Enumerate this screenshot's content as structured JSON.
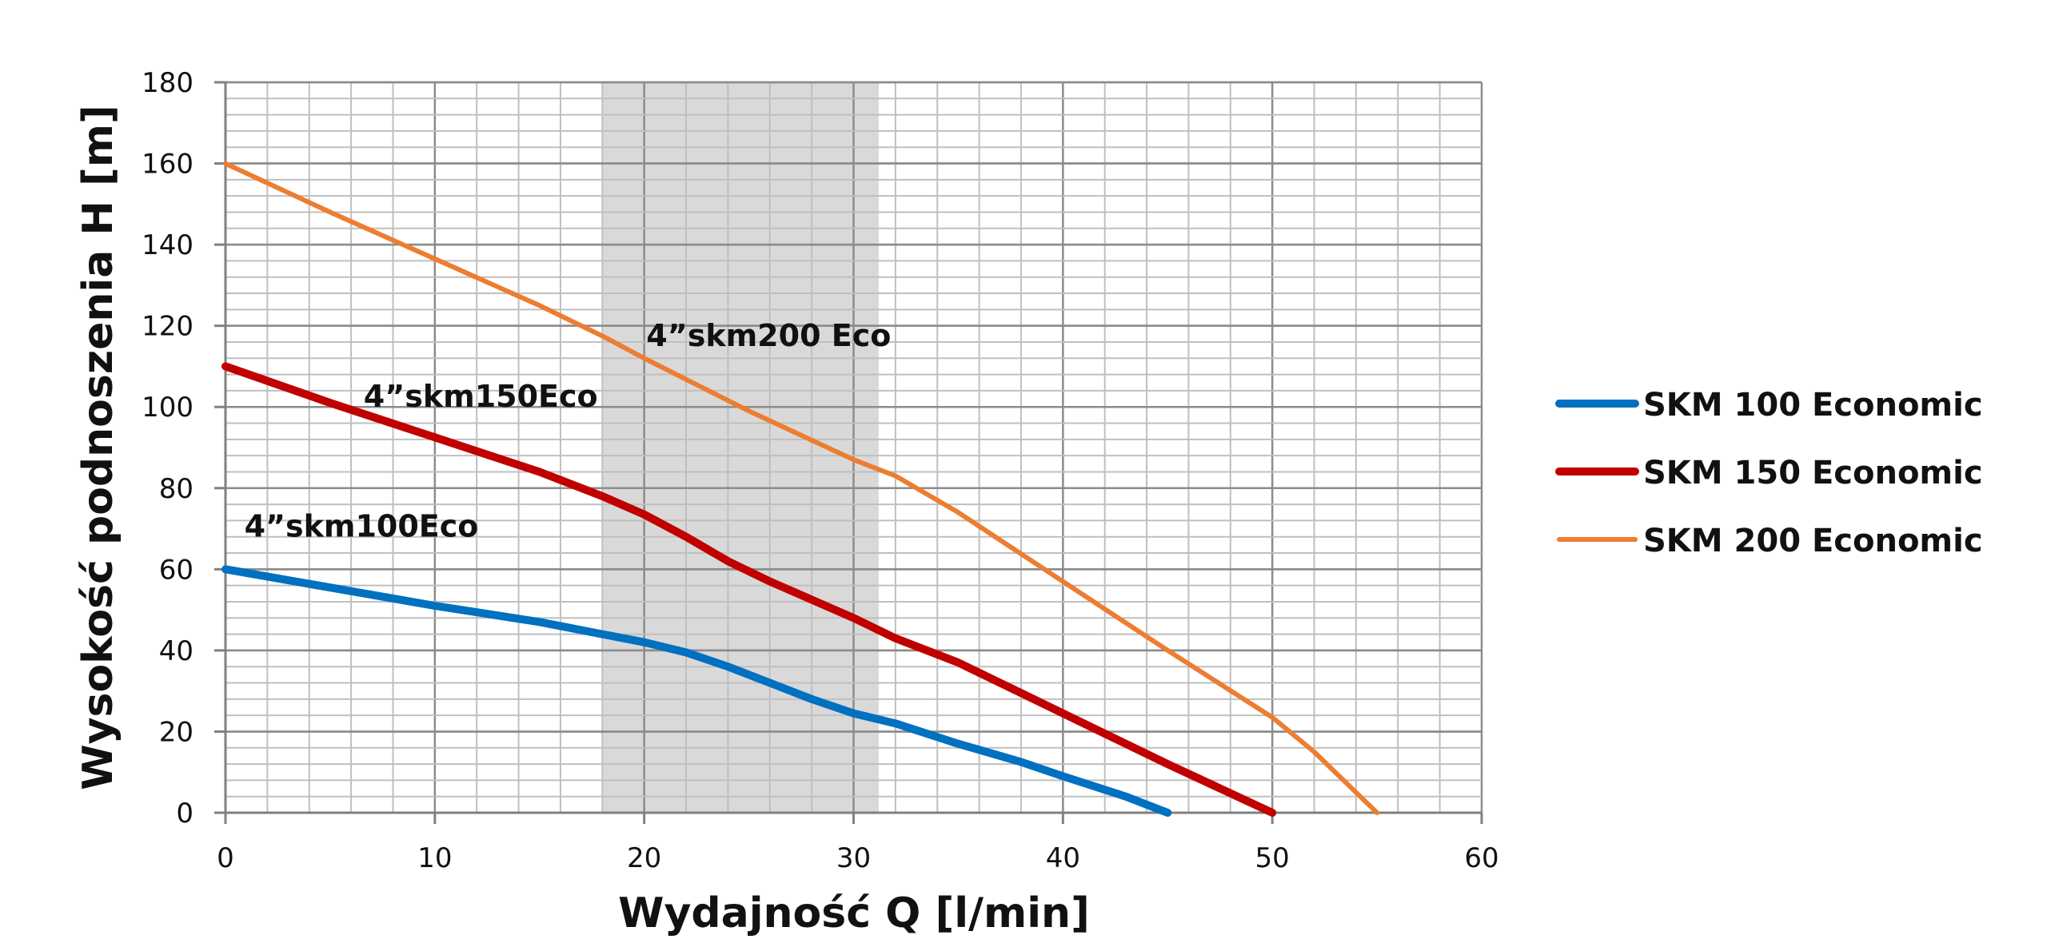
{
  "chart_data": {
    "type": "line",
    "title": "",
    "xlabel": "Wydajność Q [l/min]",
    "ylabel": "Wysokość podnoszenia H [m]",
    "xlim": [
      0,
      60
    ],
    "ylim": [
      0,
      180
    ],
    "x_ticks": [
      0,
      10,
      20,
      30,
      40,
      50,
      60
    ],
    "y_ticks": [
      0,
      20,
      40,
      60,
      80,
      100,
      120,
      140,
      160,
      180
    ],
    "x_minor_step": 2,
    "y_minor_step": 4,
    "grid": true,
    "shaded_range_x": [
      18,
      31.2
    ],
    "shaded_color": "#d9d9d9",
    "legend_position": "right",
    "series": [
      {
        "name": "SKM 100 Economic",
        "color": "#0070c0",
        "width": "thick",
        "points": [
          [
            0,
            60
          ],
          [
            5,
            55.5
          ],
          [
            10,
            51
          ],
          [
            15,
            47
          ],
          [
            18,
            44
          ],
          [
            20,
            42
          ],
          [
            22,
            39.5
          ],
          [
            24,
            36
          ],
          [
            26,
            32
          ],
          [
            28,
            28
          ],
          [
            30,
            24.5
          ],
          [
            32,
            22
          ],
          [
            35,
            17
          ],
          [
            38,
            12.5
          ],
          [
            40,
            9
          ],
          [
            43,
            4
          ],
          [
            45,
            0
          ]
        ]
      },
      {
        "name": "SKM 150 Economic",
        "color": "#c00000",
        "width": "thick",
        "points": [
          [
            0,
            110
          ],
          [
            5,
            101
          ],
          [
            10,
            92.5
          ],
          [
            15,
            84
          ],
          [
            18,
            78
          ],
          [
            20,
            73.5
          ],
          [
            22,
            68
          ],
          [
            24,
            62
          ],
          [
            26,
            57
          ],
          [
            28,
            52.5
          ],
          [
            30,
            48
          ],
          [
            32,
            43
          ],
          [
            35,
            37
          ],
          [
            40,
            24.5
          ],
          [
            45,
            12
          ],
          [
            50,
            0
          ]
        ]
      },
      {
        "name": "SKM 200 Economic",
        "color": "#ed7d31",
        "width": "thin",
        "points": [
          [
            0,
            160
          ],
          [
            5,
            148
          ],
          [
            10,
            136.5
          ],
          [
            15,
            125
          ],
          [
            18,
            117.5
          ],
          [
            20,
            112
          ],
          [
            25,
            99
          ],
          [
            30,
            87
          ],
          [
            32,
            83
          ],
          [
            35,
            74
          ],
          [
            40,
            57
          ],
          [
            45,
            40
          ],
          [
            50,
            23.5
          ],
          [
            52,
            15
          ],
          [
            55,
            0
          ]
        ]
      }
    ],
    "annotations": [
      {
        "text": "4”skm100Eco",
        "x": 0.9,
        "y": 68
      },
      {
        "text": "4”skm150Eco",
        "x": 6.6,
        "y": 100
      },
      {
        "text": "4”skm200 Eco",
        "x": 20.1,
        "y": 115
      }
    ]
  }
}
